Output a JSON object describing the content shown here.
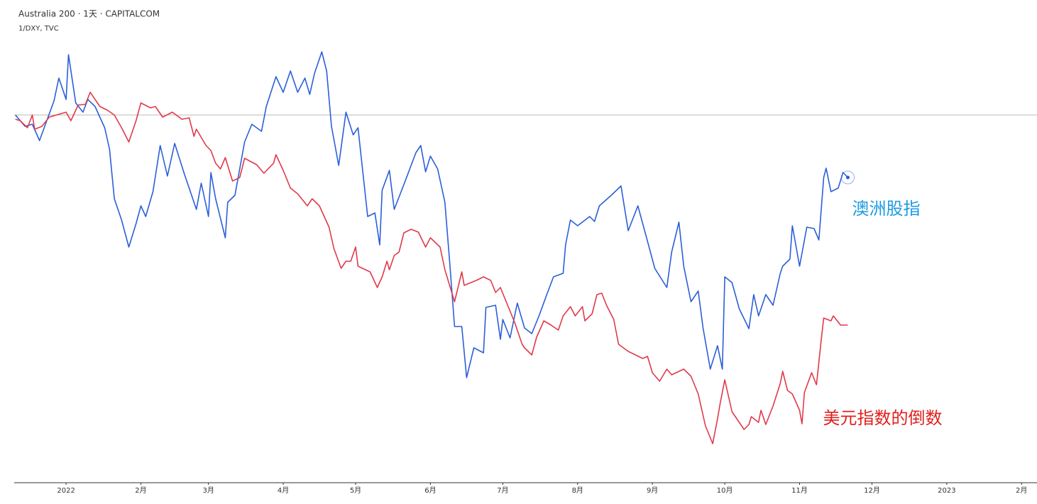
{
  "chart_data": {
    "type": "line",
    "title": "Australia 200 · 1天 · CAPITALCOM",
    "subtitle": "1/DXY, TVC",
    "baseline": 0,
    "xlim": [
      -21.5,
      402.4
    ],
    "ylim": [
      -51.8,
      16.2
    ],
    "xticks": [
      {
        "value": 0,
        "label": "2022"
      },
      {
        "value": 31,
        "label": "2月"
      },
      {
        "value": 59,
        "label": "3月"
      },
      {
        "value": 90,
        "label": "4月"
      },
      {
        "value": 120,
        "label": "5月"
      },
      {
        "value": 151,
        "label": "6月"
      },
      {
        "value": 181,
        "label": "7月"
      },
      {
        "value": 212,
        "label": "8月"
      },
      {
        "value": 243,
        "label": "9月"
      },
      {
        "value": 273,
        "label": "10月"
      },
      {
        "value": 304,
        "label": "11月"
      },
      {
        "value": 334,
        "label": "12月"
      },
      {
        "value": 365,
        "label": "2023"
      },
      {
        "value": 396,
        "label": "2月"
      }
    ],
    "series": [
      {
        "name": "澳洲股指",
        "color": "#2b5fd9",
        "label_color": "#1e9be0",
        "x": [
          -21,
          -17,
          -14,
          -11,
          -8,
          -5,
          -3,
          0,
          1,
          4,
          7,
          9,
          12,
          16,
          18,
          20,
          23,
          26,
          29,
          31,
          33,
          36,
          39,
          42,
          45,
          49,
          54,
          56,
          59,
          60,
          62,
          66,
          67,
          70,
          74,
          77,
          81,
          83,
          87,
          90,
          93,
          96,
          99,
          101,
          103,
          106,
          108,
          110,
          113,
          116,
          119,
          121,
          125,
          128,
          130,
          131,
          134,
          136,
          140,
          145,
          147,
          149,
          151,
          154,
          157,
          159,
          161,
          164,
          166,
          169,
          173,
          174,
          178,
          180,
          181,
          184,
          187,
          190,
          193,
          196,
          199,
          202,
          206,
          207,
          209,
          212,
          217,
          219,
          221,
          226,
          230,
          233,
          237,
          241,
          244,
          249,
          251,
          254,
          256,
          259,
          262,
          264,
          267,
          270,
          272,
          273,
          276,
          279,
          283,
          285,
          287,
          290,
          293,
          296,
          297,
          300,
          301,
          304,
          307,
          310,
          312,
          314,
          315,
          317,
          320,
          322,
          324
        ],
        "values": [
          0,
          -1.6,
          -1.3,
          -3.6,
          -0.8,
          2,
          5.2,
          2.2,
          8.5,
          1.7,
          0.4,
          2.2,
          1.2,
          -1.8,
          -4.8,
          -11.8,
          -14.8,
          -18.6,
          -15.3,
          -12.8,
          -14.3,
          -10.8,
          -4.3,
          -8.6,
          -4,
          -8.3,
          -13.3,
          -9.6,
          -14.3,
          -8.1,
          -11.8,
          -17.3,
          -12.3,
          -11.3,
          -3.8,
          -1.3,
          -2.3,
          1.2,
          5.4,
          3.2,
          6.2,
          3.2,
          5.2,
          2.9,
          5.9,
          8.9,
          6.2,
          -1.6,
          -7.1,
          0.4,
          -2.8,
          -1.8,
          -14.3,
          -13.8,
          -18.3,
          -10.6,
          -7.8,
          -13.3,
          -9.8,
          -5.3,
          -4.3,
          -8,
          -5.8,
          -7.6,
          -12.3,
          -20.8,
          -29.8,
          -29.8,
          -37,
          -32.8,
          -33.5,
          -27.1,
          -26.8,
          -31.6,
          -28.8,
          -31.4,
          -26.5,
          -30,
          -30.8,
          -28.3,
          -25.5,
          -22.8,
          -22.3,
          -18.3,
          -14.8,
          -15.6,
          -14.3,
          -15,
          -12.8,
          -11.3,
          -10,
          -16.3,
          -12.8,
          -17.8,
          -21.6,
          -24.3,
          -19.3,
          -15.1,
          -21.3,
          -26.3,
          -24.8,
          -30,
          -35.8,
          -32.5,
          -35.8,
          -22.8,
          -23.6,
          -27.3,
          -30.1,
          -25.3,
          -28.3,
          -25.3,
          -26.8,
          -22.3,
          -21.3,
          -20.3,
          -15.6,
          -21.3,
          -15.8,
          -16,
          -17.6,
          -8.8,
          -7.5,
          -10.8,
          -10.3,
          -8.1,
          -8.8
        ]
      },
      {
        "name": "美元指数的倒数",
        "color": "#e03a4a",
        "label_color": "#e0201e",
        "x": [
          -21,
          -19,
          -16,
          -14,
          -13,
          -10,
          -7,
          -2,
          0,
          2,
          5,
          8,
          10,
          14,
          17,
          20,
          23,
          26,
          29,
          31,
          35,
          37,
          40,
          44,
          48,
          51,
          53,
          54,
          58,
          60,
          62,
          64,
          66,
          69,
          72,
          74,
          79,
          82,
          86,
          87,
          90,
          93,
          96,
          100,
          102,
          105,
          109,
          111,
          114,
          116,
          118,
          120,
          121,
          126,
          129,
          131,
          133,
          134,
          136,
          138,
          140,
          143,
          146,
          149,
          151,
          155,
          157,
          161,
          164,
          165,
          170,
          173,
          176,
          178,
          180,
          183,
          186,
          189,
          190,
          193,
          195,
          198,
          201,
          204,
          206,
          209,
          211,
          214,
          215,
          218,
          220,
          222,
          224,
          227,
          229,
          233,
          236,
          239,
          241,
          243,
          246,
          249,
          251,
          256,
          259,
          262,
          265,
          268,
          270,
          271,
          273,
          276,
          279,
          281,
          283,
          284,
          287,
          288,
          290,
          293,
          296,
          297,
          299,
          301,
          304,
          305,
          306,
          309,
          311,
          313,
          314,
          317,
          318,
          321,
          324
        ],
        "values": [
          -0.6,
          -0.8,
          -1.8,
          0,
          -2,
          -1.6,
          -0.3,
          0.2,
          0.4,
          -0.8,
          1.4,
          1.5,
          3.2,
          1.2,
          0.7,
          0,
          -1.8,
          -3.8,
          -0.8,
          1.7,
          1,
          1.2,
          -0.3,
          0.4,
          -0.6,
          -0.4,
          -3,
          -2,
          -4.3,
          -5,
          -6.8,
          -7.6,
          -6,
          -9.3,
          -8.8,
          -6.1,
          -7,
          -8.2,
          -6.8,
          -5.6,
          -7.8,
          -10.3,
          -11.1,
          -12.8,
          -11.8,
          -12.8,
          -15.8,
          -18.8,
          -21.6,
          -20.6,
          -20.6,
          -18.6,
          -21.3,
          -22.1,
          -24.3,
          -22.8,
          -20.6,
          -21.8,
          -19.8,
          -19.3,
          -16.6,
          -16.1,
          -16.5,
          -18.6,
          -17.3,
          -18.6,
          -21.8,
          -26.3,
          -22.1,
          -24,
          -23.3,
          -22.8,
          -23.3,
          -25,
          -24.3,
          -26.8,
          -29.3,
          -32.3,
          -32.8,
          -33.8,
          -31.3,
          -29,
          -29.6,
          -30.3,
          -28.3,
          -27,
          -28.3,
          -27,
          -29,
          -28,
          -25.3,
          -25.1,
          -26.8,
          -28.8,
          -32.3,
          -33.3,
          -33.8,
          -34.3,
          -34,
          -36.3,
          -37.5,
          -35.8,
          -36.6,
          -35.8,
          -36.8,
          -39.3,
          -43.8,
          -46.3,
          -42.8,
          -40.8,
          -37.3,
          -41.8,
          -43.3,
          -44.3,
          -43.6,
          -42.5,
          -43.3,
          -41.6,
          -43.6,
          -41,
          -37.8,
          -36.1,
          -38.8,
          -39.3,
          -41.6,
          -43.5,
          -39.1,
          -36.3,
          -38,
          -31.6,
          -28.6,
          -29,
          -28.3,
          -29.6,
          -29.6
        ]
      }
    ]
  }
}
